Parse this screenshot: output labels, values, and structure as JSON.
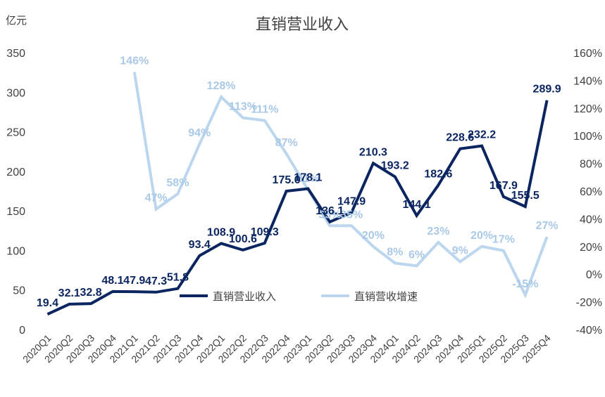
{
  "chart_data": {
    "type": "line",
    "title": "直销营业收入",
    "y_unit": "亿元",
    "categories": [
      "2020Q1",
      "2020Q2",
      "2020Q3",
      "2020Q4",
      "2021Q1",
      "2021Q2",
      "2021Q3",
      "2021Q4",
      "2022Q1",
      "2022Q2",
      "2022Q3",
      "2022Q4",
      "2023Q1",
      "2023Q2",
      "2023Q3",
      "2023Q4",
      "2024Q1",
      "2024Q2",
      "2024Q3",
      "2024Q4",
      "2025Q1",
      "2025Q2",
      "2025Q3",
      "2025Q4"
    ],
    "series": [
      {
        "name": "直销营业收入",
        "axis": "left",
        "color": "#0b2561",
        "values": [
          19.4,
          32.1,
          32.8,
          48.1,
          47.9,
          47.3,
          51.8,
          93.4,
          108.9,
          100.6,
          109.3,
          175.0,
          178.1,
          136.1,
          147.9,
          210.3,
          193.2,
          144.1,
          182.6,
          228.6,
          232.2,
          167.9,
          155.5,
          289.9
        ],
        "labels": [
          "19.4",
          "32.1",
          "32.8",
          "48.1",
          "47.9",
          "47.3",
          "51.8",
          "93.4",
          "108.9",
          "100.6",
          "109.3",
          "175.0",
          "178.1",
          "136.1",
          "147.9",
          "210.3",
          "193.2",
          "144.1",
          "182.6",
          "228.6",
          "232.2",
          "167.9",
          "155.5",
          "289.9"
        ]
      },
      {
        "name": "直销营收增速",
        "axis": "right",
        "color": "#bcd6ee",
        "values": [
          null,
          null,
          null,
          null,
          146,
          47,
          58,
          94,
          128,
          113,
          111,
          87,
          61,
          35,
          35,
          20,
          8,
          6,
          23,
          9,
          20,
          17,
          -15,
          27
        ],
        "labels": [
          "",
          "",
          "",
          "",
          "146%",
          "47%",
          "58%",
          "94%",
          "128%",
          "113%",
          "111%",
          "87%",
          "61%",
          "35%",
          "35%",
          "20%",
          "8%",
          "6%",
          "23%",
          "9%",
          "20%",
          "17%",
          "-15%",
          "27%"
        ]
      }
    ],
    "ylim_left": [
      0,
      350
    ],
    "yticks_left": [
      "0",
      "50",
      "100",
      "150",
      "200",
      "250",
      "300",
      "350"
    ],
    "ylim_right": [
      -40,
      160
    ],
    "yticks_right": [
      "-40%",
      "-20%",
      "0%",
      "20%",
      "40%",
      "60%",
      "80%",
      "100%",
      "120%",
      "140%",
      "160%"
    ],
    "grid": false,
    "legend": "center"
  }
}
